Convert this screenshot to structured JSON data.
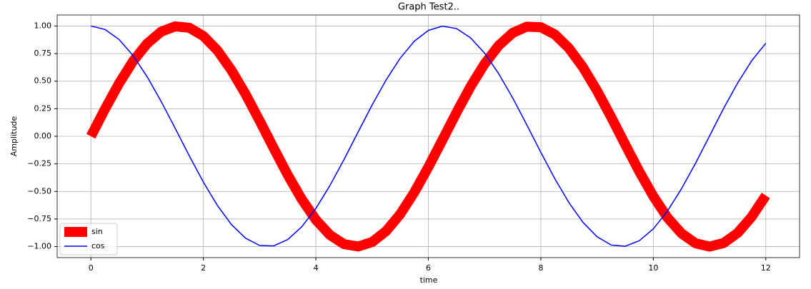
{
  "chart_data": {
    "type": "line",
    "title": "Graph Test2..",
    "x_label": "time",
    "y_label": "Amplitude",
    "x": [
      0,
      0.25,
      0.5,
      0.75,
      1,
      1.25,
      1.5,
      1.75,
      2,
      2.25,
      2.5,
      2.75,
      3,
      3.25,
      3.5,
      3.75,
      4,
      4.25,
      4.5,
      4.75,
      5,
      5.25,
      5.5,
      5.75,
      6,
      6.25,
      6.5,
      6.75,
      7,
      7.25,
      7.5,
      7.75,
      8,
      8.25,
      8.5,
      8.75,
      9,
      9.25,
      9.5,
      9.75,
      10,
      10.25,
      10.5,
      10.75,
      11,
      11.25,
      11.5,
      11.75,
      12
    ],
    "series": [
      {
        "name": "sin",
        "color": "#ff0000",
        "linewidth": 14,
        "values": [
          0,
          0.247,
          0.479,
          0.682,
          0.841,
          0.949,
          0.997,
          0.984,
          0.909,
          0.778,
          0.598,
          0.382,
          0.141,
          -0.108,
          -0.351,
          -0.572,
          -0.757,
          -0.895,
          -0.978,
          -0.999,
          -0.959,
          -0.859,
          -0.706,
          -0.508,
          -0.279,
          -0.033,
          0.215,
          0.451,
          0.657,
          0.823,
          0.938,
          0.994,
          0.989,
          0.923,
          0.798,
          0.625,
          0.412,
          0.174,
          -0.075,
          -0.319,
          -0.544,
          -0.737,
          -0.88,
          -0.97,
          -1,
          -0.968,
          -0.876,
          -0.729,
          -0.537
        ]
      },
      {
        "name": "cos",
        "color": "#0000ff",
        "linewidth": 1.5,
        "values": [
          1,
          0.969,
          0.878,
          0.732,
          0.54,
          0.315,
          0.071,
          -0.178,
          -0.416,
          -0.628,
          -0.801,
          -0.924,
          -0.99,
          -0.994,
          -0.936,
          -0.82,
          -0.654,
          -0.446,
          -0.211,
          0.038,
          0.284,
          0.512,
          0.709,
          0.862,
          0.96,
          0.999,
          0.977,
          0.893,
          0.754,
          0.568,
          0.347,
          0.104,
          -0.146,
          -0.386,
          -0.602,
          -0.781,
          -0.911,
          -0.986,
          -0.997,
          -0.947,
          -0.839,
          -0.679,
          -0.476,
          -0.245,
          0.004,
          0.253,
          0.484,
          0.686,
          0.844
        ]
      }
    ],
    "xlim": [
      -0.6,
      12.6
    ],
    "xticks": [
      0,
      2,
      4,
      6,
      8,
      10,
      12
    ],
    "ylim": [
      -1.1,
      1.1
    ],
    "yticks": [
      {
        "value": -1,
        "label": "−1.00"
      },
      {
        "value": -0.75,
        "label": "−0.75"
      },
      {
        "value": -0.5,
        "label": "−0.50"
      },
      {
        "value": -0.25,
        "label": "−0.25"
      },
      {
        "value": 0,
        "label": "0.00"
      },
      {
        "value": 0.25,
        "label": "0.25"
      },
      {
        "value": 0.5,
        "label": "0.50"
      },
      {
        "value": 0.75,
        "label": "0.75"
      },
      {
        "value": 1,
        "label": "1.00"
      }
    ],
    "grid": true,
    "legend": "lower left"
  }
}
